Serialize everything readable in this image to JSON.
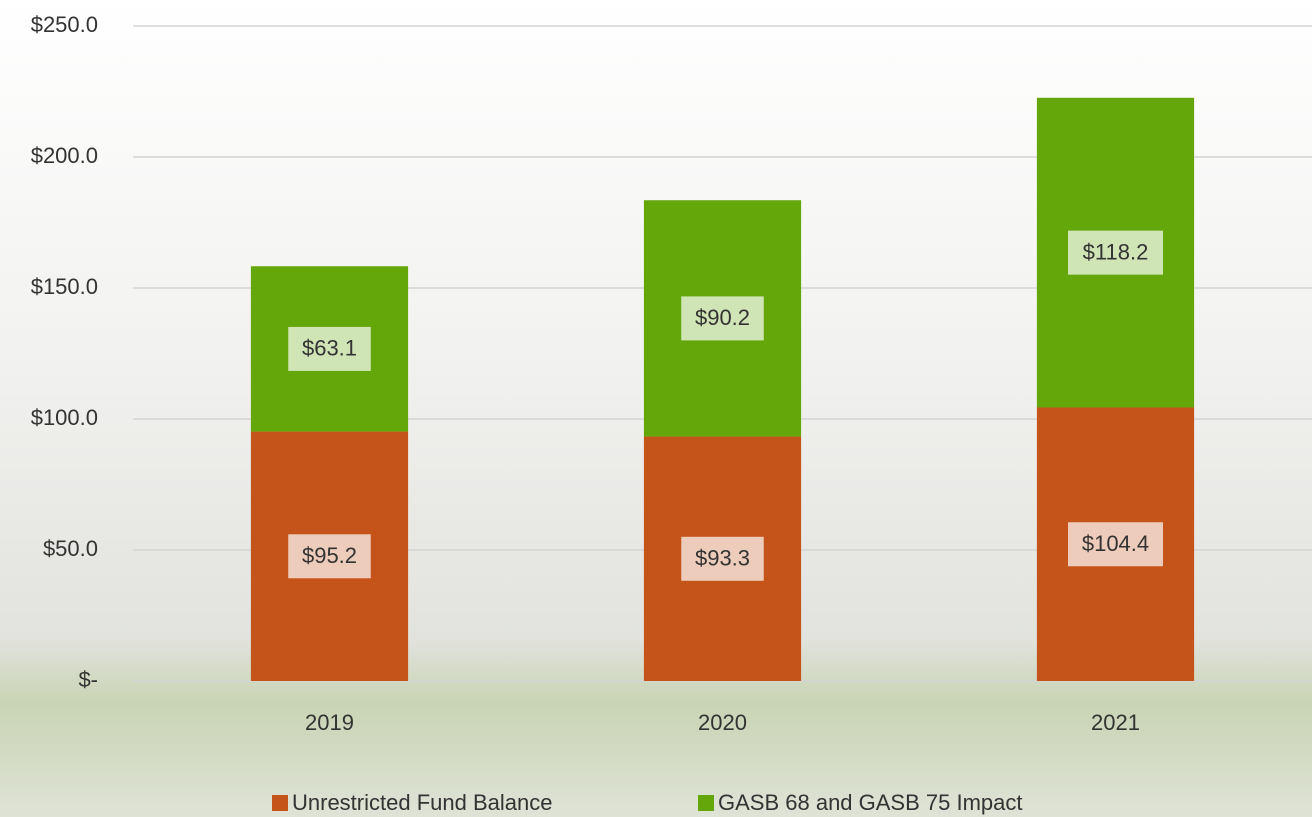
{
  "chart_data": {
    "type": "stacked_bar",
    "categories": [
      "2019",
      "2020",
      "2021"
    ],
    "series": [
      {
        "name": "Unrestricted Fund Balance",
        "color": "#c5541b",
        "values": [
          95.2,
          93.3,
          104.4
        ],
        "value_labels": [
          "$95.2",
          "$93.3",
          "$104.4"
        ]
      },
      {
        "name": "GASB 68 and GASB 75 Impact",
        "color": "#63a70a",
        "values": [
          63.1,
          90.2,
          118.2
        ],
        "value_labels": [
          "$63.1",
          "$90.2",
          "$118.2"
        ]
      }
    ],
    "ylim": [
      0,
      250
    ],
    "yticks": [
      {
        "value": 0,
        "label": "$-"
      },
      {
        "value": 50,
        "label": "$50.0"
      },
      {
        "value": 100,
        "label": "$100.0"
      },
      {
        "value": 150,
        "label": "$150.0"
      },
      {
        "value": 200,
        "label": "$200.0"
      },
      {
        "value": 250,
        "label": "$250.0"
      }
    ],
    "grid": true,
    "legend": "bottom"
  }
}
